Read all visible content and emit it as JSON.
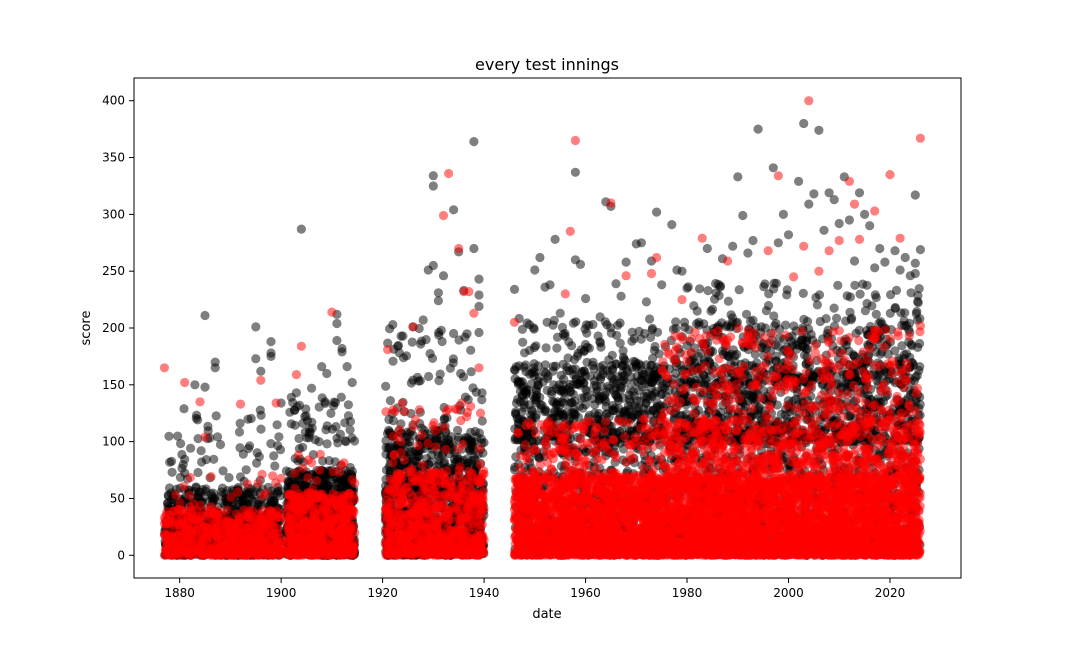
{
  "chart_data": {
    "type": "scatter",
    "title": "every test innings",
    "xlabel": "date",
    "ylabel": "score",
    "xlim": [
      1871,
      2034
    ],
    "ylim": [
      -20,
      420
    ],
    "x_ticks": [
      1880,
      1900,
      1920,
      1940,
      1960,
      1980,
      2000,
      2020
    ],
    "y_ticks": [
      0,
      50,
      100,
      150,
      200,
      250,
      300,
      350,
      400
    ],
    "grid": false,
    "legend": "none",
    "series": [
      {
        "color": "#000000",
        "opacity": 0.5,
        "points": [
          [
            1885,
            211
          ],
          [
            1885,
            148
          ],
          [
            1883,
            150
          ],
          [
            1887,
            170
          ],
          [
            1887,
            165
          ],
          [
            1895,
            201
          ],
          [
            1895,
            173
          ],
          [
            1896,
            162
          ],
          [
            1898,
            188
          ],
          [
            1898,
            178
          ],
          [
            1898,
            175
          ],
          [
            1904,
            287
          ],
          [
            1900,
            134
          ],
          [
            1902,
            139
          ],
          [
            1903,
            143
          ],
          [
            1906,
            147
          ],
          [
            1908,
            166
          ],
          [
            1909,
            160
          ],
          [
            1911,
            212
          ],
          [
            1911,
            204
          ],
          [
            1911,
            189
          ],
          [
            1912,
            182
          ],
          [
            1912,
            179
          ],
          [
            1913,
            166
          ],
          [
            1914,
            152
          ],
          [
            1922,
            203
          ],
          [
            1923,
            184
          ],
          [
            1924,
            193
          ],
          [
            1926,
            201
          ],
          [
            1928,
            207
          ],
          [
            1929,
            251
          ],
          [
            1930,
            255
          ],
          [
            1930,
            334
          ],
          [
            1930,
            325
          ],
          [
            1931,
            231
          ],
          [
            1931,
            224
          ],
          [
            1932,
            246
          ],
          [
            1934,
            304
          ],
          [
            1935,
            267
          ],
          [
            1936,
            233
          ],
          [
            1938,
            270
          ],
          [
            1938,
            364
          ],
          [
            1939,
            243
          ],
          [
            1939,
            229
          ],
          [
            1939,
            219
          ],
          [
            1939,
            196
          ],
          [
            1946,
            234
          ],
          [
            1950,
            251
          ],
          [
            1951,
            262
          ],
          [
            1952,
            236
          ],
          [
            1953,
            238
          ],
          [
            1954,
            278
          ],
          [
            1955,
            213
          ],
          [
            1958,
            337
          ],
          [
            1958,
            260
          ],
          [
            1959,
            256
          ],
          [
            1960,
            226
          ],
          [
            1964,
            311
          ],
          [
            1965,
            307
          ],
          [
            1966,
            239
          ],
          [
            1967,
            228
          ],
          [
            1968,
            258
          ],
          [
            1970,
            274
          ],
          [
            1971,
            275
          ],
          [
            1972,
            223
          ],
          [
            1973,
            259
          ],
          [
            1974,
            302
          ],
          [
            1975,
            238
          ],
          [
            1977,
            291
          ],
          [
            1978,
            251
          ],
          [
            1979,
            250
          ],
          [
            1980,
            235
          ],
          [
            1982,
            215
          ],
          [
            1984,
            270
          ],
          [
            1987,
            261
          ],
          [
            1989,
            272
          ],
          [
            1990,
            333
          ],
          [
            1991,
            299
          ],
          [
            1992,
            266
          ],
          [
            1993,
            277
          ],
          [
            1994,
            375
          ],
          [
            1997,
            341
          ],
          [
            1998,
            275
          ],
          [
            1999,
            300
          ],
          [
            2000,
            282
          ],
          [
            2002,
            329
          ],
          [
            2003,
            380
          ],
          [
            2004,
            309
          ],
          [
            2005,
            318
          ],
          [
            2006,
            374
          ],
          [
            2007,
            286
          ],
          [
            2008,
            319
          ],
          [
            2009,
            313
          ],
          [
            2010,
            292
          ],
          [
            2011,
            333
          ],
          [
            2012,
            295
          ],
          [
            2013,
            259
          ],
          [
            2014,
            319
          ],
          [
            2015,
            300
          ],
          [
            2016,
            290
          ],
          [
            2017,
            253
          ],
          [
            2018,
            270
          ],
          [
            2019,
            258
          ],
          [
            2021,
            268
          ],
          [
            2022,
            251
          ],
          [
            2023,
            262
          ],
          [
            2024,
            246
          ],
          [
            2025,
            317
          ],
          [
            2025,
            257
          ],
          [
            2025,
            248
          ],
          [
            2026,
            269
          ]
        ],
        "bands": [
          {
            "x": [
              1877,
              1900
            ],
            "y": [
              0,
              60
            ],
            "n": 700
          },
          {
            "x": [
              1877,
              1900
            ],
            "y": [
              0,
              130
            ],
            "n": 160
          },
          {
            "x": [
              1901,
              1914.5
            ],
            "y": [
              0,
              75
            ],
            "n": 700
          },
          {
            "x": [
              1901,
              1914.5
            ],
            "y": [
              0,
              140
            ],
            "n": 170
          },
          {
            "x": [
              1920.5,
              1940
            ],
            "y": [
              0,
              110
            ],
            "n": 900
          },
          {
            "x": [
              1920.5,
              1940
            ],
            "y": [
              0,
              200
            ],
            "n": 230
          },
          {
            "x": [
              1946,
              2026
            ],
            "y": [
              0,
              170
            ],
            "n": 2300
          },
          {
            "x": [
              1946,
              2026
            ],
            "y": [
              100,
              210
            ],
            "n": 900
          },
          {
            "x": [
              1980,
              2026
            ],
            "y": [
              150,
              240
            ],
            "n": 260
          }
        ]
      },
      {
        "color": "#ff0000",
        "opacity": 0.5,
        "points": [
          [
            1877,
            165
          ],
          [
            1881,
            152
          ],
          [
            1884,
            135
          ],
          [
            1885,
            104
          ],
          [
            1892,
            133
          ],
          [
            1896,
            154
          ],
          [
            1899,
            134
          ],
          [
            1903,
            159
          ],
          [
            1904,
            184
          ],
          [
            1910,
            214
          ],
          [
            1921,
            181
          ],
          [
            1926,
            201
          ],
          [
            1932,
            299
          ],
          [
            1933,
            336
          ],
          [
            1935,
            270
          ],
          [
            1936,
            232
          ],
          [
            1937,
            232
          ],
          [
            1938,
            213
          ],
          [
            1939,
            165
          ],
          [
            1946,
            205
          ],
          [
            1956,
            230
          ],
          [
            1957,
            285
          ],
          [
            1958,
            365
          ],
          [
            1965,
            310
          ],
          [
            1968,
            246
          ],
          [
            1973,
            248
          ],
          [
            1974,
            262
          ],
          [
            1979,
            225
          ],
          [
            1983,
            279
          ],
          [
            1988,
            259
          ],
          [
            1996,
            268
          ],
          [
            1998,
            334
          ],
          [
            2001,
            245
          ],
          [
            2003,
            272
          ],
          [
            2004,
            400
          ],
          [
            2006,
            250
          ],
          [
            2008,
            268
          ],
          [
            2010,
            277
          ],
          [
            2012,
            329
          ],
          [
            2013,
            309
          ],
          [
            2014,
            278
          ],
          [
            2017,
            303
          ],
          [
            2020,
            335
          ],
          [
            2022,
            279
          ],
          [
            2026,
            367
          ],
          [
            2026,
            202
          ]
        ],
        "bands": [
          {
            "x": [
              1877,
              1900
            ],
            "y": [
              0,
              40
            ],
            "n": 550
          },
          {
            "x": [
              1877,
              1900
            ],
            "y": [
              0,
              75
            ],
            "n": 70
          },
          {
            "x": [
              1901,
              1914.5
            ],
            "y": [
              0,
              55
            ],
            "n": 500
          },
          {
            "x": [
              1901,
              1914.5
            ],
            "y": [
              0,
              90
            ],
            "n": 70
          },
          {
            "x": [
              1920.5,
              1940
            ],
            "y": [
              0,
              75
            ],
            "n": 650
          },
          {
            "x": [
              1920.5,
              1940
            ],
            "y": [
              0,
              140
            ],
            "n": 110
          },
          {
            "x": [
              1946,
              2026
            ],
            "y": [
              0,
              70
            ],
            "n": 3800
          },
          {
            "x": [
              1946,
              2026
            ],
            "y": [
              0,
              120
            ],
            "n": 1500
          },
          {
            "x": [
              1975,
              2026
            ],
            "y": [
              60,
              200
            ],
            "n": 750
          }
        ]
      }
    ]
  }
}
